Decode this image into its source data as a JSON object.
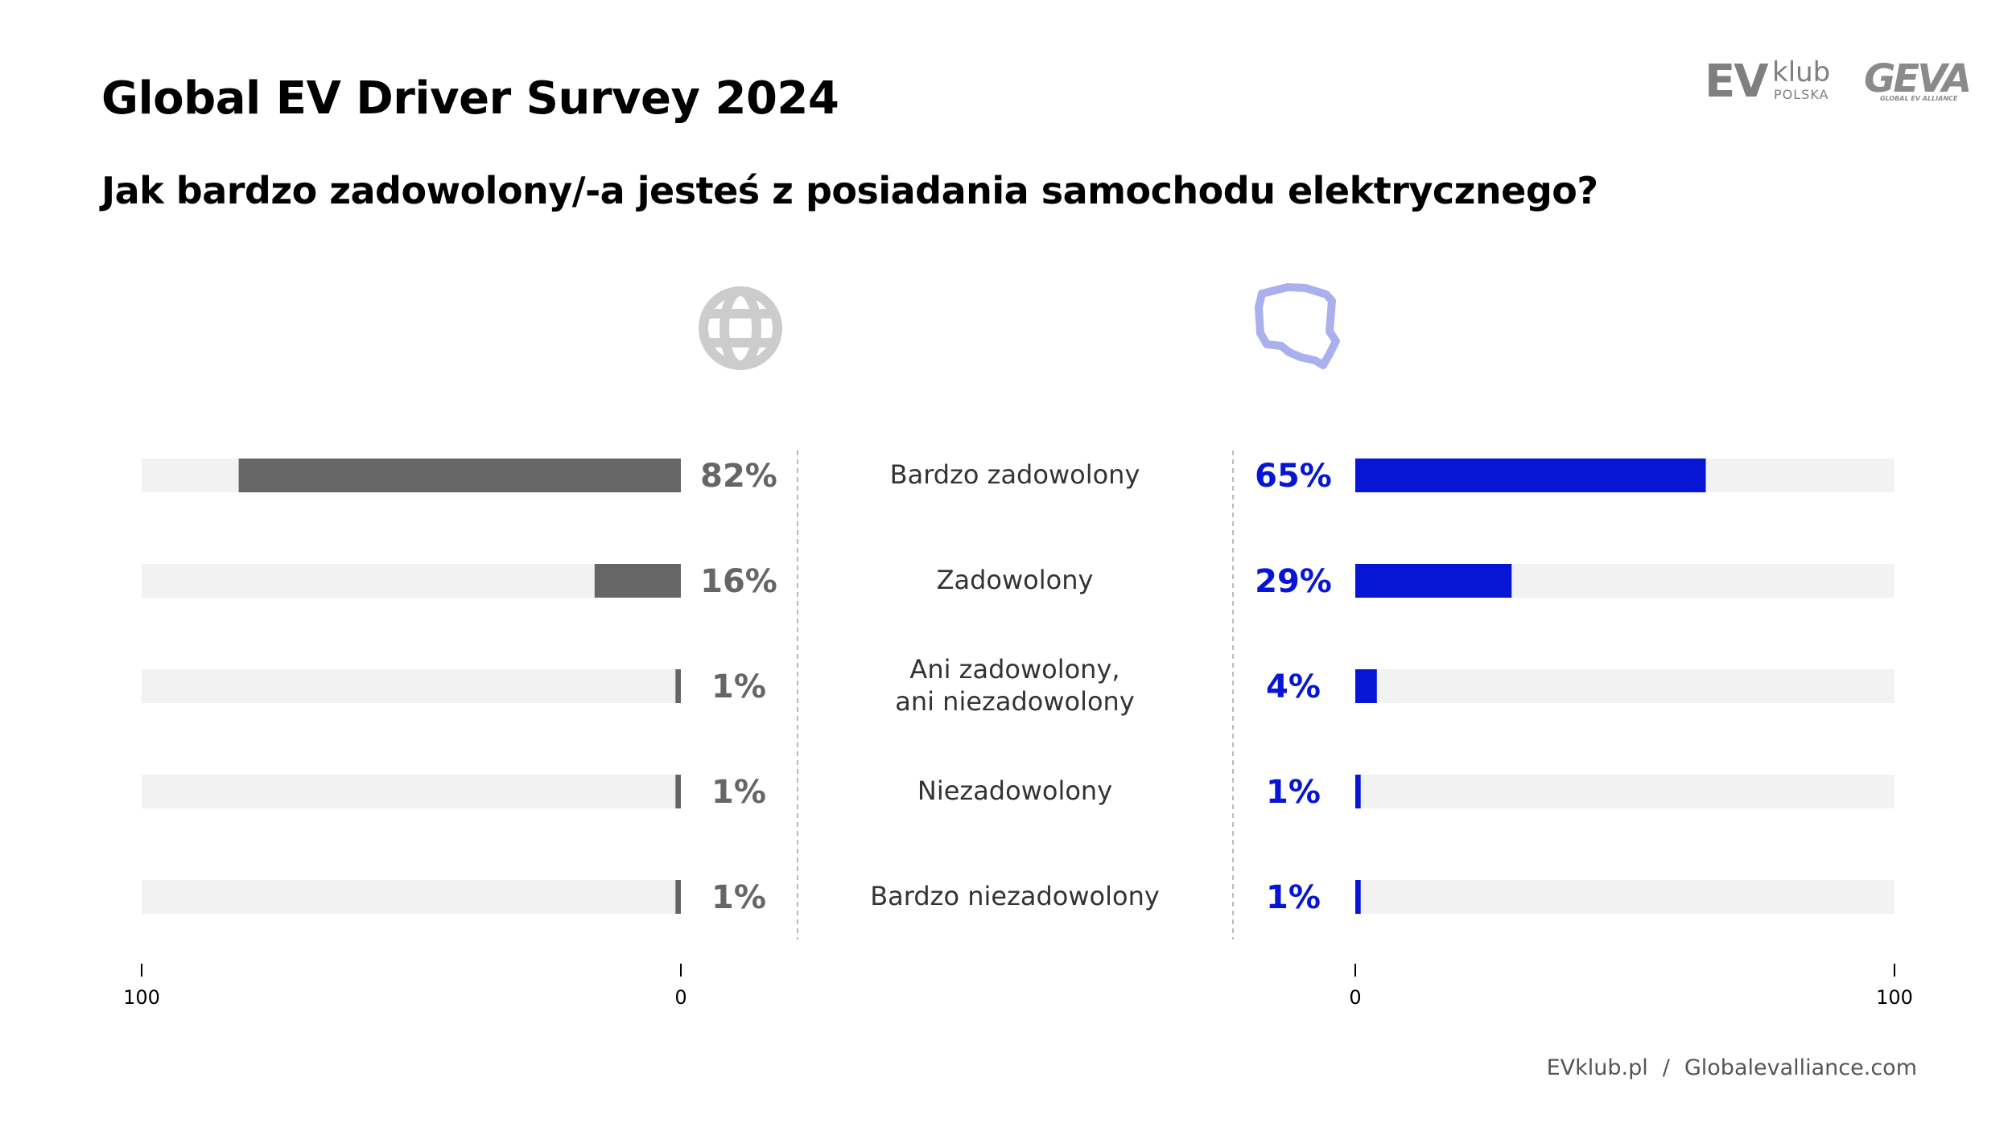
{
  "header": {
    "title": "Global EV Driver Survey 2024",
    "subtitle": "Jak bardzo zadowolony/-a jesteś z posiadania samochodu elektrycznego?"
  },
  "logos": {
    "evklub": {
      "main": "EV",
      "small": "klub",
      "sub": "POLSKA"
    },
    "geva": {
      "main": "GEVA",
      "sub": "GLOBAL EV ALLIANCE"
    }
  },
  "icons": {
    "left": "globe-icon",
    "right": "poland-map-icon"
  },
  "colors": {
    "global": "#666666",
    "poland": "#0616d4",
    "track": "#f2f2f2",
    "poland_icon": "#aab0ee",
    "globe_icon": "#cccccc"
  },
  "chart_data": {
    "type": "bar",
    "categories": [
      "Bardzo zadowolony",
      "Zadowolony",
      "Ani zadowolony,\nani niezadowolony",
      "Niezadowolony",
      "Bardzo niezadowolony"
    ],
    "series": [
      {
        "values": [
          82,
          16,
          1,
          1,
          1
        ],
        "labels": [
          "82%",
          "16%",
          "1%",
          "1%",
          "1%"
        ]
      },
      {
        "values": [
          65,
          29,
          4,
          1,
          1
        ],
        "labels": [
          "65%",
          "29%",
          "4%",
          "1%",
          "1%"
        ]
      }
    ],
    "xlim": [
      0,
      100
    ],
    "left_axis_ticks": [
      "100",
      "0"
    ],
    "right_axis_ticks": [
      "0",
      "100"
    ]
  },
  "footer": {
    "left": "EVklub.pl",
    "separator": "/",
    "right": "Globalevalliance.com"
  }
}
